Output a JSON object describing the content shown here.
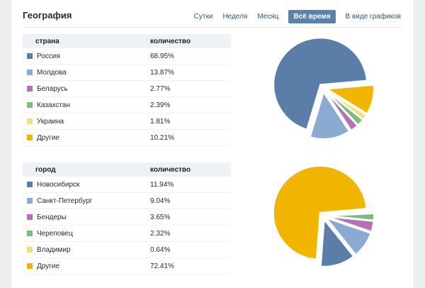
{
  "title": "География",
  "tabs": [
    {
      "label": "Сутки"
    },
    {
      "label": "Неделя"
    },
    {
      "label": "Месяц"
    },
    {
      "label": "Всё время"
    },
    {
      "label": "В виде графиков"
    }
  ],
  "countries": {
    "col_name": "страна",
    "col_value": "количество",
    "rows": [
      {
        "name": "Россия",
        "value": "68.95%",
        "color": "#5b7ea8"
      },
      {
        "name": "Молдова",
        "value": "13.87%",
        "color": "#8aaad2"
      },
      {
        "name": "Беларусь",
        "value": "2.77%",
        "color": "#b86fb5"
      },
      {
        "name": "Казахстан",
        "value": "2.39%",
        "color": "#7dbb7d"
      },
      {
        "name": "Украина",
        "value": "1.81%",
        "color": "#f1e07a"
      },
      {
        "name": "Другие",
        "value": "10.21%",
        "color": "#f1b400"
      }
    ]
  },
  "cities": {
    "col_name": "город",
    "col_value": "количество",
    "rows": [
      {
        "name": "Новосибирск",
        "value": "11.94%",
        "color": "#5b7ea8"
      },
      {
        "name": "Санкт-Петербург",
        "value": "9.04%",
        "color": "#8aaad2"
      },
      {
        "name": "Бендеры",
        "value": "3.65%",
        "color": "#b86fb5"
      },
      {
        "name": "Череповец",
        "value": "2.32%",
        "color": "#7dbb7d"
      },
      {
        "name": "Владимир",
        "value": "0.64%",
        "color": "#f1e07a"
      },
      {
        "name": "Другие",
        "value": "72.41%",
        "color": "#f1b400"
      }
    ]
  },
  "chart_data": [
    {
      "type": "pie",
      "categories": [
        "Россия",
        "Молдова",
        "Беларусь",
        "Казахстан",
        "Украина",
        "Другие"
      ],
      "values": [
        68.95,
        13.87,
        2.77,
        2.39,
        1.81,
        10.21
      ],
      "colors": [
        "#5b7ea8",
        "#8aaad2",
        "#b86fb5",
        "#7dbb7d",
        "#f1e07a",
        "#f1b400"
      ]
    },
    {
      "type": "pie",
      "categories": [
        "Новосибирск",
        "Санкт-Петербург",
        "Бендеры",
        "Череповец",
        "Владимир",
        "Другие"
      ],
      "values": [
        11.94,
        9.04,
        3.65,
        2.32,
        0.64,
        72.41
      ],
      "colors": [
        "#5b7ea8",
        "#8aaad2",
        "#b86fb5",
        "#7dbb7d",
        "#f1e07a",
        "#f1b400"
      ]
    }
  ]
}
